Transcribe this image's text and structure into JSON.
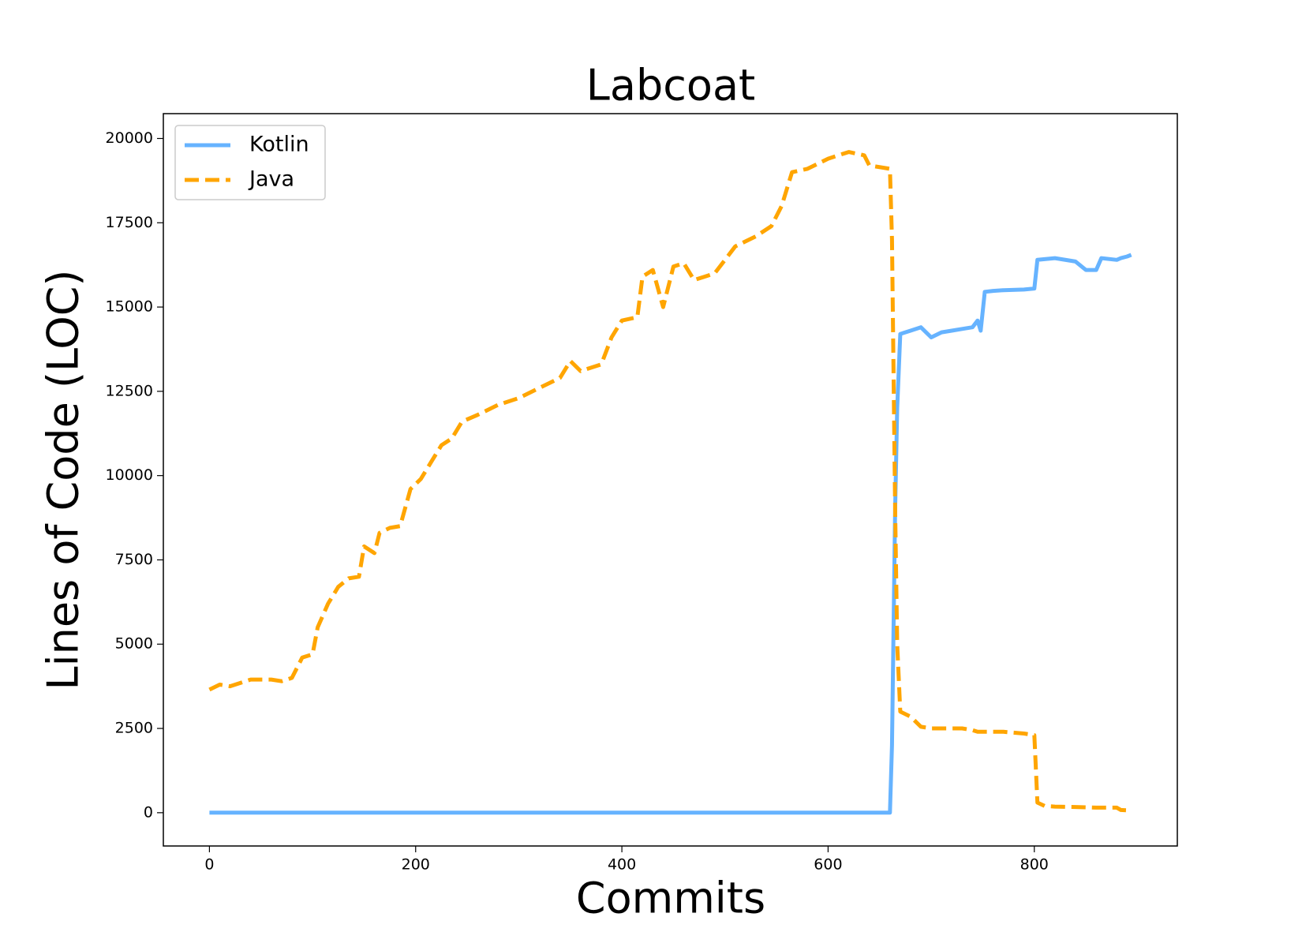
{
  "chart_data": {
    "type": "line",
    "title": "Labcoat",
    "x_label": "Commits",
    "y_label": "Lines of Code (LOC)",
    "x": [
      0,
      10,
      20,
      40,
      60,
      70,
      80,
      90,
      100,
      105,
      115,
      125,
      135,
      145,
      150,
      160,
      165,
      175,
      185,
      195,
      205,
      215,
      225,
      235,
      245,
      260,
      280,
      300,
      320,
      340,
      350,
      360,
      380,
      390,
      400,
      415,
      420,
      430,
      440,
      450,
      460,
      470,
      490,
      500,
      510,
      530,
      545,
      555,
      565,
      580,
      600,
      620,
      635,
      640,
      660,
      662,
      665,
      667,
      670,
      680,
      690,
      700,
      710,
      720,
      730,
      740,
      745,
      748,
      752,
      760,
      770,
      790,
      800,
      803,
      810,
      820,
      840,
      850,
      860,
      865,
      880,
      884,
      890,
      894
    ],
    "series": [
      {
        "name": "Kotlin",
        "color": "#66b3ff",
        "linestyle": "solid",
        "values": [
          0,
          0,
          0,
          0,
          0,
          0,
          0,
          0,
          0,
          0,
          0,
          0,
          0,
          0,
          0,
          0,
          0,
          0,
          0,
          0,
          0,
          0,
          0,
          0,
          0,
          0,
          0,
          0,
          0,
          0,
          0,
          0,
          0,
          0,
          0,
          0,
          0,
          0,
          0,
          0,
          0,
          0,
          0,
          0,
          0,
          0,
          0,
          0,
          0,
          0,
          0,
          0,
          0,
          0,
          0,
          2000,
          9000,
          12000,
          14200,
          14300,
          14400,
          14100,
          14250,
          14300,
          14350,
          14400,
          14600,
          14300,
          15450,
          15480,
          15500,
          15520,
          15550,
          16400,
          16420,
          16450,
          16350,
          16100,
          16100,
          16450,
          16400,
          16450,
          16500,
          16550
        ]
      },
      {
        "name": "Java",
        "color": "#ffa500",
        "linestyle": "dashed",
        "values": [
          3650,
          3800,
          3750,
          3950,
          3950,
          3900,
          4000,
          4600,
          4700,
          5500,
          6200,
          6700,
          6950,
          7000,
          7900,
          7700,
          8300,
          8450,
          8500,
          9600,
          9900,
          10400,
          10900,
          11100,
          11600,
          11800,
          12100,
          12300,
          12600,
          12900,
          13400,
          13100,
          13300,
          14100,
          14600,
          14700,
          15900,
          16100,
          15000,
          16200,
          16300,
          15800,
          16000,
          16400,
          16800,
          17100,
          17400,
          18000,
          19000,
          19100,
          19400,
          19600,
          19500,
          19200,
          19100,
          17000,
          9000,
          5000,
          3000,
          2850,
          2550,
          2500,
          2500,
          2500,
          2500,
          2450,
          2400,
          2400,
          2400,
          2400,
          2400,
          2350,
          2300,
          300,
          200,
          180,
          170,
          160,
          150,
          150,
          150,
          80,
          70,
          null
        ]
      }
    ],
    "xlim": [
      -44.7,
      938.7
    ],
    "ylim": [
      -987,
      20737
    ],
    "xticks": [
      0,
      200,
      400,
      600,
      800
    ],
    "yticks": [
      0,
      2500,
      5000,
      7500,
      10000,
      12500,
      15000,
      17500,
      20000
    ],
    "legend": "upper left"
  }
}
